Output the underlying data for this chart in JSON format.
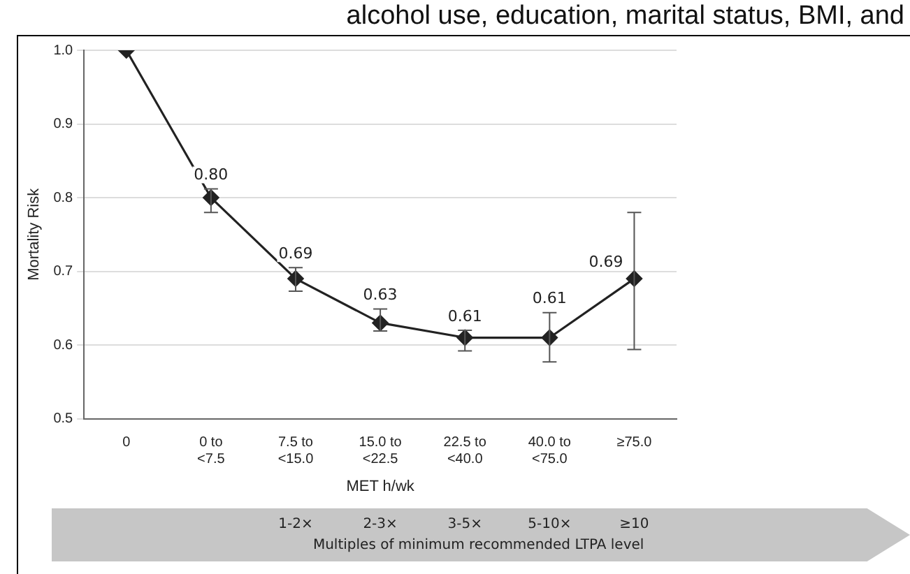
{
  "chart_data": {
    "type": "line",
    "ylabel": "Mortality Risk",
    "xlabel": "MET h/wk",
    "categories": [
      "0",
      "0 to\n<7.5",
      "7.5 to\n<15.0",
      "15.0 to\n<22.5",
      "22.5 to\n<40.0",
      "40.0 to\n<75.0",
      "≥75.0"
    ],
    "series": [
      {
        "color": "#222222",
        "values": [
          1.0,
          0.8,
          0.69,
          0.63,
          0.61,
          0.61,
          0.69
        ],
        "errors": [
          null,
          [
            0.78,
            0.812
          ],
          [
            0.673,
            0.705
          ],
          [
            0.619,
            0.649
          ],
          [
            0.592,
            0.62
          ],
          [
            0.577,
            0.644
          ],
          [
            0.594,
            0.78
          ]
        ],
        "value_labels": [
          null,
          "0.80",
          "0.69",
          "0.63",
          "0.61",
          "0.61",
          "0.69"
        ]
      }
    ],
    "ylim": [
      0.5,
      1.0
    ],
    "yticks": [
      {
        "value": 0.5,
        "label": "0.5"
      },
      {
        "value": 0.6,
        "label": "0.6"
      },
      {
        "value": 0.7,
        "label": "0.7"
      },
      {
        "value": 0.8,
        "label": "0.8"
      },
      {
        "value": 0.9,
        "label": "0.9"
      },
      {
        "value": 1.0,
        "label": "1.0"
      }
    ],
    "grid": "y",
    "marker": "diamond",
    "line_style": "solid",
    "legend": false,
    "annotations": [
      "alcohol use, education, marital status, BMI, and",
      "1-2×",
      "2-3×",
      "3-5×",
      "5-10×",
      "≥10",
      "Multiples of minimum recommended LTPA level"
    ]
  }
}
